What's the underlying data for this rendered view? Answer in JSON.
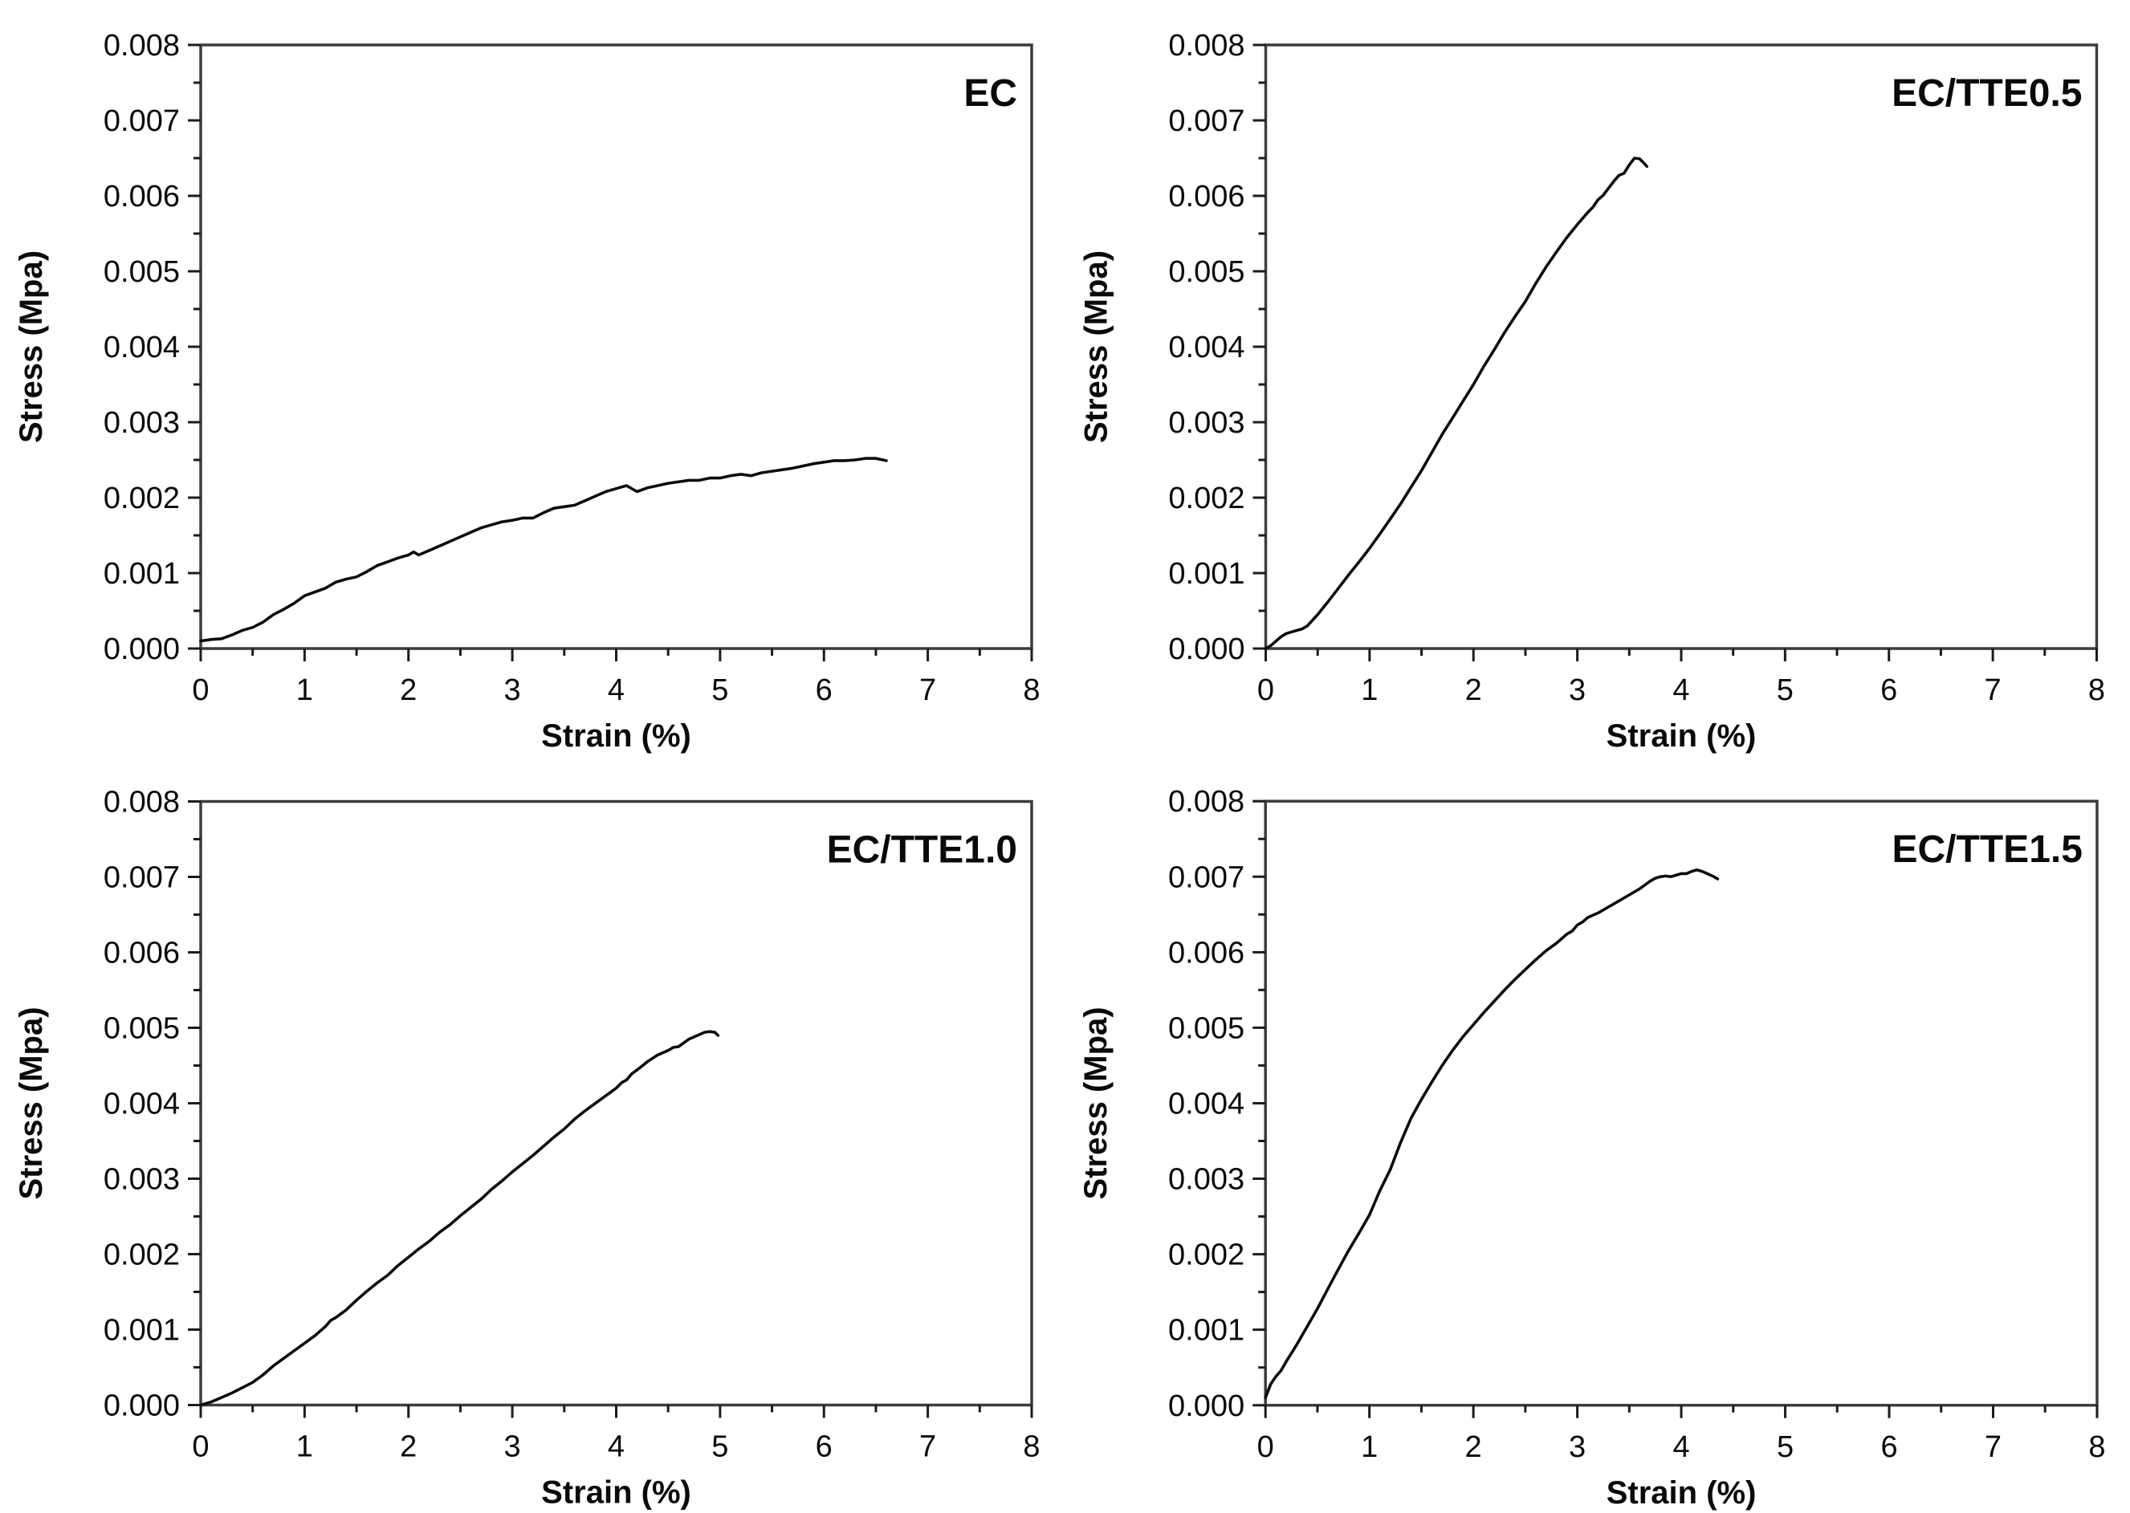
{
  "style": {
    "background": "#ffffff",
    "axis_color": "#3c3c3c",
    "tick_color": "#1c1c1c",
    "text_color": "#0a0a0a",
    "curve_color": "#0c0c0c"
  },
  "axes_common": {
    "xlabel": "Strain (%)",
    "ylabel": "Stress (Mpa)",
    "xlim": [
      0,
      8
    ],
    "ylim": [
      0,
      0.008
    ],
    "x_tick_values": [
      0,
      1,
      2,
      3,
      4,
      5,
      6,
      7,
      8
    ],
    "x_tick_labels": [
      "0",
      "1",
      "2",
      "3",
      "4",
      "5",
      "6",
      "7",
      "8"
    ],
    "x_minor_tick_values": [
      0.5,
      1.5,
      2.5,
      3.5,
      4.5,
      5.5,
      6.5,
      7.5
    ],
    "y_tick_values": [
      0,
      0.001,
      0.002,
      0.003,
      0.004,
      0.005,
      0.006,
      0.007,
      0.008
    ],
    "y_tick_labels": [
      "0.000",
      "0.001",
      "0.002",
      "0.003",
      "0.004",
      "0.005",
      "0.006",
      "0.007",
      "0.008"
    ],
    "y_minor_tick_values": [
      0.0005,
      0.0015,
      0.0025,
      0.0035,
      0.0045,
      0.0055,
      0.0065,
      0.0075
    ],
    "grid": false,
    "legend": "none"
  },
  "chart_data": [
    {
      "type": "line",
      "title": "EC",
      "xlabel": "Strain (%)",
      "ylabel": "Stress (Mpa)",
      "xlim": [
        0,
        8
      ],
      "ylim": [
        0,
        0.008
      ],
      "series": [
        {
          "name": "EC",
          "points": [
            [
              0,
              0.0001
            ],
            [
              0.1,
              0.00012
            ],
            [
              0.2,
              0.00013
            ],
            [
              0.3,
              0.00018
            ],
            [
              0.4,
              0.00024
            ],
            [
              0.5,
              0.00028
            ],
            [
              0.6,
              0.00035
            ],
            [
              0.7,
              0.00045
            ],
            [
              0.8,
              0.00052
            ],
            [
              0.9,
              0.0006
            ],
            [
              1.0,
              0.0007
            ],
            [
              1.1,
              0.00075
            ],
            [
              1.2,
              0.0008
            ],
            [
              1.3,
              0.00088
            ],
            [
              1.4,
              0.00092
            ],
            [
              1.5,
              0.00095
            ],
            [
              1.6,
              0.00102
            ],
            [
              1.7,
              0.0011
            ],
            [
              1.8,
              0.00115
            ],
            [
              1.9,
              0.0012
            ],
            [
              2.0,
              0.00124
            ],
            [
              2.05,
              0.00128
            ],
            [
              2.1,
              0.00124
            ],
            [
              2.2,
              0.0013
            ],
            [
              2.3,
              0.00136
            ],
            [
              2.4,
              0.00142
            ],
            [
              2.5,
              0.00148
            ],
            [
              2.6,
              0.00154
            ],
            [
              2.7,
              0.0016
            ],
            [
              2.8,
              0.00164
            ],
            [
              2.9,
              0.00168
            ],
            [
              3.0,
              0.0017
            ],
            [
              3.1,
              0.00173
            ],
            [
              3.2,
              0.00173
            ],
            [
              3.3,
              0.0018
            ],
            [
              3.4,
              0.00186
            ],
            [
              3.5,
              0.00188
            ],
            [
              3.6,
              0.0019
            ],
            [
              3.7,
              0.00196
            ],
            [
              3.8,
              0.00202
            ],
            [
              3.9,
              0.00208
            ],
            [
              4.0,
              0.00212
            ],
            [
              4.1,
              0.00216
            ],
            [
              4.2,
              0.00208
            ],
            [
              4.3,
              0.00213
            ],
            [
              4.4,
              0.00216
            ],
            [
              4.5,
              0.00219
            ],
            [
              4.6,
              0.00221
            ],
            [
              4.7,
              0.00223
            ],
            [
              4.8,
              0.00223
            ],
            [
              4.9,
              0.00226
            ],
            [
              5.0,
              0.00226
            ],
            [
              5.1,
              0.00229
            ],
            [
              5.2,
              0.00231
            ],
            [
              5.3,
              0.00229
            ],
            [
              5.4,
              0.00233
            ],
            [
              5.5,
              0.00235
            ],
            [
              5.6,
              0.00237
            ],
            [
              5.7,
              0.00239
            ],
            [
              5.8,
              0.00242
            ],
            [
              5.9,
              0.00245
            ],
            [
              6.0,
              0.00247
            ],
            [
              6.1,
              0.00249
            ],
            [
              6.2,
              0.00249
            ],
            [
              6.3,
              0.0025
            ],
            [
              6.4,
              0.00252
            ],
            [
              6.5,
              0.00252
            ],
            [
              6.6,
              0.00249
            ]
          ]
        }
      ]
    },
    {
      "type": "line",
      "title": "EC/TTE0.5",
      "xlabel": "Strain (%)",
      "ylabel": "Stress (Mpa)",
      "xlim": [
        0,
        8
      ],
      "ylim": [
        0,
        0.008
      ],
      "series": [
        {
          "name": "EC/TTE0.5",
          "points": [
            [
              0,
              0
            ],
            [
              0.05,
              4e-05
            ],
            [
              0.1,
              0.0001
            ],
            [
              0.15,
              0.00016
            ],
            [
              0.2,
              0.0002
            ],
            [
              0.25,
              0.00022
            ],
            [
              0.3,
              0.00024
            ],
            [
              0.35,
              0.00026
            ],
            [
              0.4,
              0.0003
            ],
            [
              0.5,
              0.00045
            ],
            [
              0.6,
              0.00062
            ],
            [
              0.7,
              0.0008
            ],
            [
              0.8,
              0.00098
            ],
            [
              0.9,
              0.00115
            ],
            [
              1.0,
              0.00133
            ],
            [
              1.1,
              0.00152
            ],
            [
              1.2,
              0.00172
            ],
            [
              1.3,
              0.00192
            ],
            [
              1.4,
              0.00214
            ],
            [
              1.5,
              0.00236
            ],
            [
              1.6,
              0.0026
            ],
            [
              1.7,
              0.00284
            ],
            [
              1.8,
              0.00306
            ],
            [
              1.9,
              0.00328
            ],
            [
              2.0,
              0.0035
            ],
            [
              2.1,
              0.00374
            ],
            [
              2.2,
              0.00396
            ],
            [
              2.3,
              0.00419
            ],
            [
              2.4,
              0.0044
            ],
            [
              2.5,
              0.0046
            ],
            [
              2.6,
              0.00484
            ],
            [
              2.7,
              0.00506
            ],
            [
              2.8,
              0.00526
            ],
            [
              2.9,
              0.00545
            ],
            [
              3.0,
              0.00562
            ],
            [
              3.1,
              0.00578
            ],
            [
              3.15,
              0.00585
            ],
            [
              3.2,
              0.00595
            ],
            [
              3.25,
              0.00601
            ],
            [
              3.3,
              0.0061
            ],
            [
              3.35,
              0.00619
            ],
            [
              3.4,
              0.00627
            ],
            [
              3.45,
              0.0063
            ],
            [
              3.5,
              0.00641
            ],
            [
              3.55,
              0.0065
            ],
            [
              3.6,
              0.00649
            ],
            [
              3.63,
              0.00645
            ],
            [
              3.67,
              0.00639
            ]
          ]
        }
      ]
    },
    {
      "type": "line",
      "title": "EC/TTE1.0",
      "xlabel": "Strain (%)",
      "ylabel": "Stress (Mpa)",
      "xlim": [
        0,
        8
      ],
      "ylim": [
        0,
        0.008
      ],
      "series": [
        {
          "name": "EC/TTE1.0",
          "points": [
            [
              0,
              0
            ],
            [
              0.1,
              4e-05
            ],
            [
              0.2,
              0.0001
            ],
            [
              0.3,
              0.00016
            ],
            [
              0.4,
              0.00023
            ],
            [
              0.5,
              0.0003
            ],
            [
              0.6,
              0.0004
            ],
            [
              0.7,
              0.00052
            ],
            [
              0.8,
              0.00062
            ],
            [
              0.9,
              0.00072
            ],
            [
              1.0,
              0.00082
            ],
            [
              1.1,
              0.00092
            ],
            [
              1.2,
              0.00104
            ],
            [
              1.25,
              0.00112
            ],
            [
              1.3,
              0.00116
            ],
            [
              1.4,
              0.00126
            ],
            [
              1.5,
              0.00139
            ],
            [
              1.6,
              0.00151
            ],
            [
              1.7,
              0.00162
            ],
            [
              1.8,
              0.00172
            ],
            [
              1.9,
              0.00185
            ],
            [
              2.0,
              0.00196
            ],
            [
              2.1,
              0.00207
            ],
            [
              2.2,
              0.00217
            ],
            [
              2.3,
              0.00229
            ],
            [
              2.4,
              0.00239
            ],
            [
              2.5,
              0.00251
            ],
            [
              2.6,
              0.00262
            ],
            [
              2.7,
              0.00273
            ],
            [
              2.8,
              0.00286
            ],
            [
              2.9,
              0.00297
            ],
            [
              3.0,
              0.00309
            ],
            [
              3.1,
              0.0032
            ],
            [
              3.2,
              0.00331
            ],
            [
              3.3,
              0.00343
            ],
            [
              3.4,
              0.00355
            ],
            [
              3.5,
              0.00366
            ],
            [
              3.6,
              0.00379
            ],
            [
              3.7,
              0.0039
            ],
            [
              3.8,
              0.004
            ],
            [
              3.9,
              0.0041
            ],
            [
              4.0,
              0.0042
            ],
            [
              4.05,
              0.00427
            ],
            [
              4.1,
              0.00431
            ],
            [
              4.15,
              0.00439
            ],
            [
              4.2,
              0.00444
            ],
            [
              4.3,
              0.00455
            ],
            [
              4.4,
              0.00464
            ],
            [
              4.5,
              0.0047
            ],
            [
              4.55,
              0.00474
            ],
            [
              4.6,
              0.00475
            ],
            [
              4.65,
              0.0048
            ],
            [
              4.7,
              0.00485
            ],
            [
              4.75,
              0.00488
            ],
            [
              4.8,
              0.00491
            ],
            [
              4.85,
              0.00494
            ],
            [
              4.9,
              0.00495
            ],
            [
              4.95,
              0.00494
            ],
            [
              4.98,
              0.0049
            ]
          ]
        }
      ]
    },
    {
      "type": "line",
      "title": "EC/TTE1.5",
      "xlabel": "Strain (%)",
      "ylabel": "Stress (Mpa)",
      "xlim": [
        0,
        8
      ],
      "ylim": [
        0,
        0.008
      ],
      "series": [
        {
          "name": "EC/TTE1.5",
          "points": [
            [
              0,
              0.0001
            ],
            [
              0.05,
              0.00028
            ],
            [
              0.1,
              0.00038
            ],
            [
              0.15,
              0.00046
            ],
            [
              0.2,
              0.00058
            ],
            [
              0.3,
              0.0008
            ],
            [
              0.4,
              0.00104
            ],
            [
              0.5,
              0.00128
            ],
            [
              0.6,
              0.00154
            ],
            [
              0.7,
              0.0018
            ],
            [
              0.8,
              0.00205
            ],
            [
              0.9,
              0.00228
            ],
            [
              1.0,
              0.00252
            ],
            [
              1.1,
              0.00284
            ],
            [
              1.2,
              0.00312
            ],
            [
              1.3,
              0.00348
            ],
            [
              1.4,
              0.0038
            ],
            [
              1.5,
              0.00405
            ],
            [
              1.6,
              0.00428
            ],
            [
              1.7,
              0.0045
            ],
            [
              1.8,
              0.0047
            ],
            [
              1.9,
              0.00488
            ],
            [
              2.0,
              0.00504
            ],
            [
              2.1,
              0.0052
            ],
            [
              2.2,
              0.00535
            ],
            [
              2.3,
              0.0055
            ],
            [
              2.4,
              0.00564
            ],
            [
              2.5,
              0.00577
            ],
            [
              2.6,
              0.0059
            ],
            [
              2.7,
              0.00602
            ],
            [
              2.8,
              0.00612
            ],
            [
              2.9,
              0.00624
            ],
            [
              2.95,
              0.00628
            ],
            [
              3.0,
              0.00636
            ],
            [
              3.05,
              0.0064
            ],
            [
              3.1,
              0.00646
            ],
            [
              3.2,
              0.00652
            ],
            [
              3.3,
              0.0066
            ],
            [
              3.4,
              0.00668
            ],
            [
              3.5,
              0.00676
            ],
            [
              3.6,
              0.00684
            ],
            [
              3.7,
              0.00694
            ],
            [
              3.75,
              0.00698
            ],
            [
              3.8,
              0.007
            ],
            [
              3.85,
              0.00701
            ],
            [
              3.9,
              0.007
            ],
            [
              3.95,
              0.00702
            ],
            [
              4.0,
              0.00704
            ],
            [
              4.05,
              0.00704
            ],
            [
              4.1,
              0.00707
            ],
            [
              4.15,
              0.00709
            ],
            [
              4.2,
              0.00707
            ],
            [
              4.25,
              0.00704
            ],
            [
              4.3,
              0.00701
            ],
            [
              4.35,
              0.00697
            ]
          ]
        }
      ]
    }
  ]
}
